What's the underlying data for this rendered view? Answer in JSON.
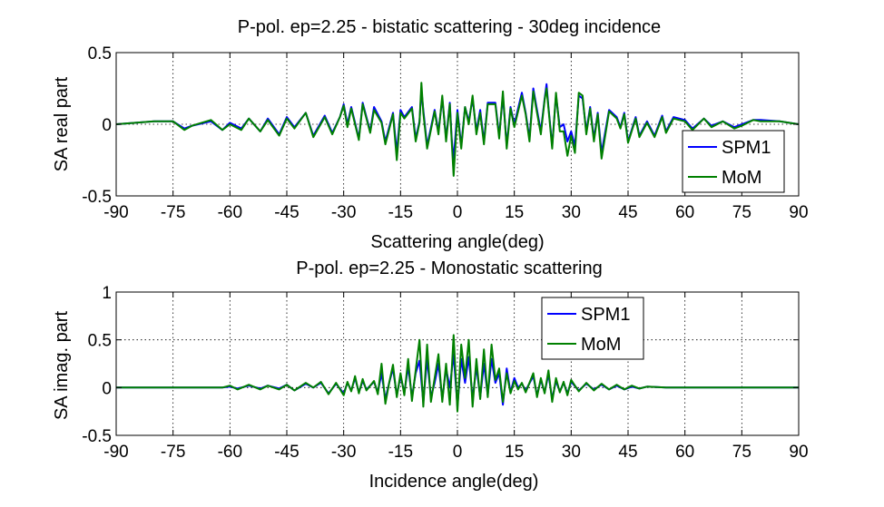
{
  "chart_data": [
    {
      "type": "line",
      "title": "P-pol. ep=2.25 - bistatic scattering - 30deg incidence",
      "xlabel": "Scattering angle(deg)",
      "ylabel": "SA real part",
      "xlim": [
        -90,
        90
      ],
      "ylim": [
        -0.5,
        0.5
      ],
      "xticks": [
        -90,
        -75,
        -60,
        -45,
        -30,
        -15,
        0,
        15,
        30,
        45,
        60,
        75,
        90
      ],
      "xtick_labels": [
        "-90",
        "-75",
        "-60",
        "-45",
        "-30",
        "-15",
        "0",
        "15",
        "30",
        "45",
        "60",
        "75",
        "90"
      ],
      "yticks": [
        -0.5,
        0,
        0.5
      ],
      "ytick_labels": [
        "-0.5",
        "0",
        "0.5"
      ],
      "grid": true,
      "legend": "bottom-right",
      "x": [
        -90,
        -85,
        -80,
        -75,
        -72,
        -70,
        -65,
        -62,
        -60,
        -57,
        -55,
        -52,
        -50,
        -47,
        -45,
        -43,
        -40,
        -38,
        -35,
        -33,
        -31,
        -30,
        -29,
        -28,
        -26,
        -25,
        -23,
        -22,
        -20,
        -19,
        -17,
        -16,
        -15,
        -14,
        -12,
        -11,
        -10,
        -9.5,
        -9,
        -8,
        -6,
        -5,
        -4,
        -3,
        -2,
        -1.5,
        -1,
        0,
        1,
        2,
        3,
        4,
        5,
        6,
        7,
        8,
        10,
        11,
        12,
        13,
        14,
        15,
        17,
        18,
        19,
        20,
        21,
        22,
        23,
        23.5,
        24,
        25,
        26,
        27,
        28,
        29,
        30,
        31,
        32,
        33,
        34,
        35,
        36,
        37,
        38,
        40,
        42,
        43,
        44,
        45,
        47,
        48,
        50,
        52,
        54,
        55,
        57,
        60,
        62,
        65,
        67,
        70,
        73,
        75,
        78,
        80,
        85,
        90
      ],
      "series": [
        {
          "name": "SPM1",
          "color": "#0000ff",
          "values": [
            0.0,
            0.01,
            0.02,
            0.02,
            -0.03,
            -0.01,
            0.02,
            -0.04,
            0.01,
            -0.03,
            0.04,
            -0.05,
            0.04,
            -0.07,
            0.05,
            -0.02,
            0.08,
            -0.08,
            0.06,
            -0.06,
            0.05,
            0.14,
            0.0,
            0.12,
            -0.1,
            0.15,
            -0.05,
            0.12,
            0.02,
            -0.12,
            0.08,
            -0.2,
            0.1,
            0.05,
            0.12,
            -0.1,
            0.02,
            0.24,
            0.1,
            -0.15,
            0.1,
            -0.05,
            0.18,
            -0.1,
            0.15,
            -0.1,
            -0.25,
            0.1,
            -0.15,
            0.12,
            0.02,
            0.18,
            -0.05,
            0.1,
            -0.12,
            0.15,
            0.15,
            -0.08,
            0.2,
            -0.15,
            0.12,
            0.0,
            0.22,
            0.08,
            -0.1,
            0.25,
            0.1,
            -0.05,
            0.18,
            0.28,
            0.12,
            -0.15,
            0.2,
            -0.02,
            0.0,
            -0.12,
            -0.05,
            -0.15,
            0.2,
            0.18,
            -0.05,
            0.12,
            -0.1,
            0.08,
            -0.2,
            0.1,
            0.05,
            -0.02,
            0.08,
            -0.12,
            0.05,
            -0.08,
            0.02,
            -0.08,
            0.06,
            -0.05,
            0.05,
            0.03,
            -0.03,
            0.04,
            -0.01,
            0.02,
            -0.02,
            0.0,
            0.03,
            0.03,
            0.02,
            0.0
          ]
        },
        {
          "name": "MoM",
          "color": "#008000",
          "values": [
            0.0,
            0.01,
            0.02,
            0.02,
            -0.04,
            -0.01,
            0.03,
            -0.04,
            0.0,
            -0.04,
            0.04,
            -0.05,
            0.03,
            -0.08,
            0.04,
            -0.03,
            0.08,
            -0.09,
            0.05,
            -0.07,
            0.05,
            0.13,
            -0.02,
            0.11,
            -0.11,
            0.14,
            -0.06,
            0.1,
            0.01,
            -0.14,
            0.07,
            -0.25,
            0.08,
            0.04,
            0.11,
            -0.12,
            0.01,
            0.29,
            0.08,
            -0.17,
            0.09,
            -0.07,
            0.2,
            -0.12,
            0.14,
            -0.12,
            -0.36,
            0.08,
            -0.17,
            0.12,
            0.0,
            0.2,
            -0.07,
            0.08,
            -0.14,
            0.14,
            0.14,
            -0.1,
            0.23,
            -0.17,
            0.11,
            -0.02,
            0.2,
            0.07,
            -0.12,
            0.23,
            0.08,
            -0.07,
            0.17,
            0.25,
            0.11,
            -0.17,
            0.22,
            -0.05,
            -0.05,
            -0.22,
            -0.08,
            -0.2,
            0.22,
            0.2,
            -0.07,
            0.11,
            -0.12,
            0.07,
            -0.24,
            0.09,
            0.04,
            -0.03,
            0.07,
            -0.13,
            0.04,
            -0.09,
            0.01,
            -0.09,
            0.05,
            -0.06,
            0.04,
            0.02,
            -0.04,
            0.04,
            -0.02,
            0.02,
            -0.03,
            -0.01,
            0.03,
            0.02,
            0.02,
            0.0
          ]
        }
      ]
    },
    {
      "type": "line",
      "title": "P-pol. ep=2.25 - Monostatic scattering",
      "xlabel": "Incidence angle(deg)",
      "ylabel": "SA imag. part",
      "xlim": [
        -90,
        90
      ],
      "ylim": [
        -0.5,
        1
      ],
      "xticks": [
        -90,
        -75,
        -60,
        -45,
        -30,
        -15,
        0,
        15,
        30,
        45,
        60,
        75,
        90
      ],
      "xtick_labels": [
        "-90",
        "-75",
        "-60",
        "-45",
        "-30",
        "-15",
        "0",
        "15",
        "30",
        "45",
        "60",
        "75",
        "90"
      ],
      "yticks": [
        -0.5,
        0,
        0.5,
        1
      ],
      "ytick_labels": [
        "-0.5",
        "0",
        "0.5",
        "1"
      ],
      "grid": true,
      "legend": "top-right",
      "x": [
        -90,
        -80,
        -70,
        -62,
        -60,
        -58,
        -55,
        -52,
        -50,
        -47,
        -45,
        -43,
        -40,
        -38,
        -36,
        -34,
        -32,
        -30,
        -29,
        -28,
        -27,
        -26,
        -25,
        -24,
        -22,
        -21,
        -20,
        -19,
        -18,
        -17,
        -16,
        -15,
        -14,
        -13,
        -12,
        -11,
        -10,
        -9,
        -8,
        -7,
        -6,
        -5,
        -4,
        -3,
        -2,
        -1,
        0,
        1,
        2,
        3,
        4,
        5,
        6,
        7,
        8,
        9,
        10,
        11,
        12,
        13,
        14,
        15,
        16,
        17,
        18,
        20,
        21,
        22,
        23,
        24,
        25,
        26,
        27,
        28,
        29,
        30,
        32,
        34,
        36,
        38,
        40,
        42,
        44,
        46,
        48,
        50,
        55,
        60,
        65,
        70,
        80,
        90
      ],
      "series": [
        {
          "name": "SPM1",
          "color": "#0000ff",
          "values": [
            0.0,
            0.0,
            0.0,
            0.0,
            0.01,
            -0.01,
            0.02,
            -0.01,
            0.02,
            -0.01,
            0.03,
            -0.03,
            0.04,
            0.0,
            0.05,
            -0.06,
            0.04,
            -0.06,
            0.05,
            -0.03,
            0.1,
            -0.05,
            0.07,
            -0.02,
            0.06,
            -0.05,
            0.15,
            -0.12,
            0.05,
            0.2,
            -0.08,
            0.12,
            -0.05,
            0.22,
            -0.1,
            0.15,
            0.28,
            -0.15,
            0.3,
            -0.1,
            0.05,
            0.25,
            -0.12,
            0.2,
            0.0,
            0.35,
            -0.2,
            0.3,
            0.05,
            0.32,
            -0.12,
            0.22,
            -0.1,
            0.25,
            -0.08,
            0.3,
            0.05,
            0.15,
            -0.18,
            0.2,
            -0.05,
            0.1,
            0.0,
            0.04,
            -0.03,
            0.12,
            -0.08,
            0.08,
            -0.05,
            0.14,
            -0.12,
            0.07,
            -0.04,
            0.05,
            -0.06,
            0.06,
            -0.03,
            0.04,
            -0.02,
            0.03,
            -0.02,
            0.02,
            -0.02,
            0.01,
            -0.01,
            0.01,
            0.0,
            0.0,
            0.0,
            0.0,
            0.0,
            0.0
          ]
        },
        {
          "name": "MoM",
          "color": "#008000",
          "values": [
            0.0,
            0.0,
            0.0,
            0.0,
            0.02,
            -0.02,
            0.03,
            -0.02,
            0.02,
            -0.02,
            0.03,
            -0.03,
            0.05,
            0.0,
            0.06,
            -0.07,
            0.05,
            -0.08,
            0.06,
            -0.04,
            0.12,
            -0.06,
            0.09,
            -0.03,
            0.07,
            -0.07,
            0.25,
            -0.17,
            0.05,
            0.24,
            -0.1,
            0.15,
            -0.08,
            0.3,
            -0.14,
            0.18,
            0.5,
            -0.2,
            0.45,
            -0.15,
            0.1,
            0.35,
            -0.15,
            0.25,
            -0.18,
            0.55,
            -0.25,
            0.45,
            0.1,
            0.5,
            -0.2,
            0.3,
            -0.12,
            0.4,
            -0.1,
            0.45,
            0.08,
            0.2,
            -0.15,
            0.15,
            -0.06,
            0.07,
            -0.02,
            0.05,
            -0.05,
            0.15,
            -0.1,
            0.1,
            -0.06,
            0.18,
            -0.15,
            0.1,
            -0.05,
            0.06,
            -0.08,
            0.08,
            -0.04,
            0.05,
            -0.03,
            0.04,
            -0.02,
            0.03,
            -0.02,
            0.02,
            -0.01,
            0.01,
            0.0,
            0.0,
            0.0,
            0.0,
            0.0,
            0.0
          ]
        }
      ]
    }
  ]
}
